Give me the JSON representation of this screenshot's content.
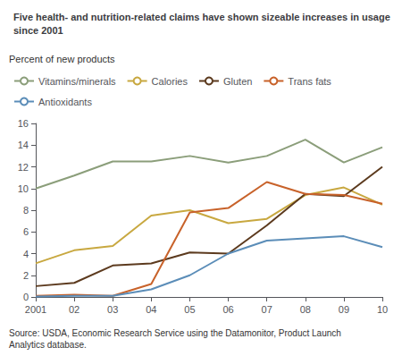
{
  "chart_data": {
    "type": "line",
    "title": "Five health- and nutrition-related claims have shown sizeable increases in usage\nsince 2001",
    "ylabel": "Percent of new products",
    "annotations": [
      "Source: USDA, Economic Research Service using the Datamonitor, Product Launch\nAnalytics database."
    ],
    "x": [
      2001,
      2002,
      2003,
      2004,
      2005,
      2006,
      2007,
      2008,
      2009,
      2010
    ],
    "xlim": [
      2001,
      2010
    ],
    "xticks": [
      2001,
      {
        "value": 2002,
        "label": "02"
      },
      {
        "value": 2003,
        "label": "03"
      },
      {
        "value": 2004,
        "label": "04"
      },
      {
        "value": 2005,
        "label": "05"
      },
      {
        "value": 2006,
        "label": "06"
      },
      {
        "value": 2007,
        "label": "07"
      },
      {
        "value": 2008,
        "label": "08"
      },
      {
        "value": 2009,
        "label": "09"
      },
      {
        "value": 2010,
        "label": "10"
      }
    ],
    "series": [
      {
        "name": "Vitamins/minerals",
        "color": "#8B9E7A",
        "values": [
          10.0,
          11.2,
          12.5,
          12.5,
          13.0,
          12.4,
          13.0,
          14.5,
          12.4,
          13.8
        ]
      },
      {
        "name": "Calories",
        "color": "#C8A840",
        "values": [
          3.1,
          4.3,
          4.7,
          7.5,
          8.0,
          6.8,
          7.2,
          9.4,
          10.1,
          8.5
        ]
      },
      {
        "name": "Gluten",
        "color": "#5C3A1E",
        "values": [
          1.0,
          1.3,
          2.9,
          3.1,
          4.1,
          4.0,
          6.6,
          9.5,
          9.3,
          12.0
        ]
      },
      {
        "name": "Trans fats",
        "color": "#C8622A",
        "values": [
          0.1,
          0.2,
          0.1,
          1.2,
          7.8,
          8.2,
          10.6,
          9.5,
          9.4,
          8.6
        ]
      },
      {
        "name": "Antioxidants",
        "color": "#5B8DB8",
        "values": [
          0.05,
          0.1,
          0.1,
          0.7,
          2.0,
          4.0,
          5.2,
          5.4,
          5.6,
          4.6
        ]
      }
    ],
    "ylim": [
      0,
      16
    ],
    "yticks": [
      0,
      2,
      4,
      6,
      8,
      10,
      12,
      14,
      16
    ],
    "grid": false,
    "legend": "top left"
  }
}
